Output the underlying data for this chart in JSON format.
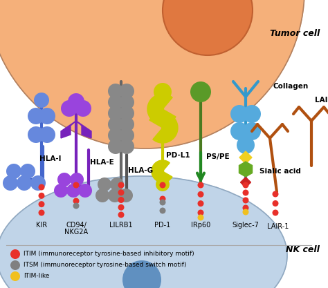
{
  "background_color": "#ffffff",
  "tumor_cell_label": "Tumor cell",
  "nk_cell_label": "NK cell",
  "legend_items": [
    {
      "color": "#e8302a",
      "label": "ITIM (immunoreceptor tyrosine-based inhibitory motif)"
    },
    {
      "color": "#808080",
      "label": "ITSM (immunoreceptor tyrosine-based switch motif)"
    },
    {
      "color": "#f0c020",
      "label": "ITIM-like"
    }
  ]
}
